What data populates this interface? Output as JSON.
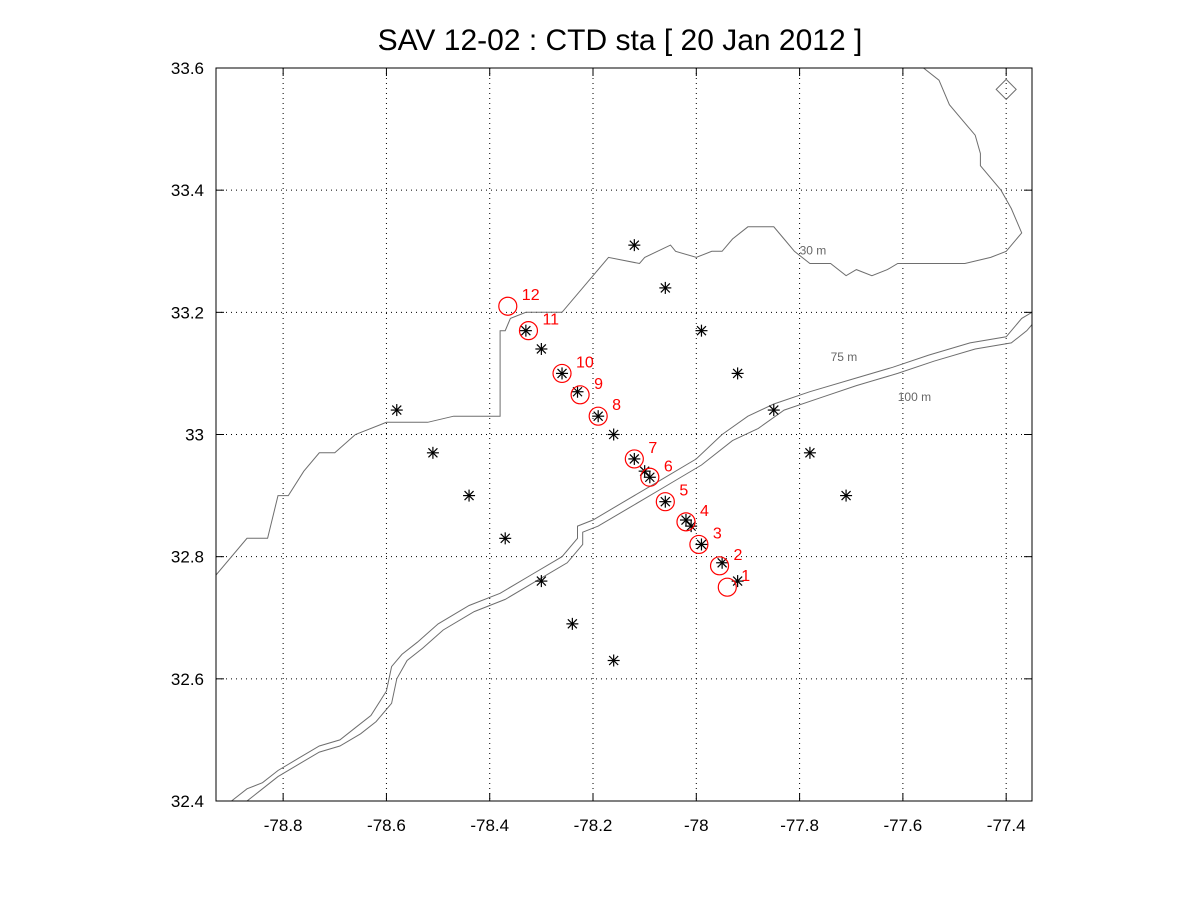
{
  "title": "SAV 12-02 : CTD  sta   [ 20 Jan 2012 ]",
  "map": {
    "xlim": [
      -78.93,
      -77.35
    ],
    "ylim": [
      32.4,
      33.6
    ],
    "x_ticks": [
      -78.8,
      -78.6,
      -78.4,
      -78.2,
      -78.0,
      -77.8,
      -77.6,
      -77.4
    ],
    "x_tick_labels": [
      "-78.8",
      "-78.6",
      "-78.4",
      "-78.2",
      "-78",
      "-77.8",
      "-77.6",
      "-77.4"
    ],
    "y_ticks": [
      32.4,
      32.6,
      32.8,
      33.0,
      33.2,
      33.4,
      33.6
    ],
    "y_tick_labels": [
      "32.4",
      "32.6",
      "32.8",
      "33",
      "33.2",
      "33.4",
      "33.6"
    ],
    "grid": true,
    "contour_labels": [
      {
        "text": "30 m",
        "lon": -77.8,
        "lat": 33.295
      },
      {
        "text": "75 m",
        "lon": -77.74,
        "lat": 33.12
      },
      {
        "text": "100 m",
        "lon": -77.61,
        "lat": 33.055
      }
    ],
    "coastline": [
      [
        -78.93,
        32.77
      ],
      [
        -78.87,
        32.83
      ],
      [
        -78.83,
        32.83
      ],
      [
        -78.81,
        32.9
      ],
      [
        -78.79,
        32.9
      ],
      [
        -78.76,
        32.94
      ],
      [
        -78.73,
        32.97
      ],
      [
        -78.7,
        32.97
      ],
      [
        -78.66,
        33.0
      ],
      [
        -78.6,
        33.02
      ],
      [
        -78.52,
        33.02
      ],
      [
        -78.47,
        33.03
      ],
      [
        -78.43,
        33.03
      ],
      [
        -78.38,
        33.03
      ],
      [
        -78.38,
        33.17
      ],
      [
        -78.37,
        33.17
      ],
      [
        -78.36,
        33.19
      ],
      [
        -78.33,
        33.2
      ],
      [
        -78.32,
        33.2
      ],
      [
        -78.3,
        33.2
      ],
      [
        -78.26,
        33.2
      ],
      [
        -78.17,
        33.29
      ],
      [
        -78.11,
        33.28
      ],
      [
        -78.1,
        33.29
      ],
      [
        -78.05,
        33.31
      ],
      [
        -78.04,
        33.3
      ],
      [
        -78.0,
        33.29
      ],
      [
        -77.97,
        33.3
      ],
      [
        -77.95,
        33.3
      ],
      [
        -77.93,
        33.32
      ],
      [
        -77.9,
        33.34
      ],
      [
        -77.85,
        33.34
      ],
      [
        -77.83,
        33.32
      ],
      [
        -77.81,
        33.3
      ],
      [
        -77.78,
        33.28
      ],
      [
        -77.74,
        33.28
      ],
      [
        -77.71,
        33.26
      ],
      [
        -77.69,
        33.27
      ],
      [
        -77.66,
        33.26
      ],
      [
        -77.63,
        33.27
      ],
      [
        -77.61,
        33.28
      ],
      [
        -77.57,
        33.28
      ],
      [
        -77.54,
        33.28
      ],
      [
        -77.51,
        33.28
      ],
      [
        -77.48,
        33.28
      ],
      [
        -77.43,
        33.29
      ],
      [
        -77.4,
        33.3
      ],
      [
        -77.37,
        33.33
      ],
      [
        -77.39,
        33.37
      ],
      [
        -77.41,
        33.4
      ],
      [
        -77.45,
        33.44
      ],
      [
        -77.45,
        33.46
      ],
      [
        -77.46,
        33.49
      ],
      [
        -77.47,
        33.5
      ],
      [
        -77.49,
        33.52
      ],
      [
        -77.51,
        33.54
      ],
      [
        -77.53,
        33.58
      ],
      [
        -77.56,
        33.6
      ]
    ],
    "isobath_75m": [
      [
        -78.9,
        32.4
      ],
      [
        -78.87,
        32.42
      ],
      [
        -78.84,
        32.43
      ],
      [
        -78.81,
        32.45
      ],
      [
        -78.77,
        32.47
      ],
      [
        -78.73,
        32.49
      ],
      [
        -78.69,
        32.5
      ],
      [
        -78.66,
        32.52
      ],
      [
        -78.63,
        32.54
      ],
      [
        -78.6,
        32.58
      ],
      [
        -78.59,
        32.62
      ],
      [
        -78.57,
        32.64
      ],
      [
        -78.54,
        32.66
      ],
      [
        -78.5,
        32.69
      ],
      [
        -78.44,
        32.72
      ],
      [
        -78.38,
        32.74
      ],
      [
        -78.32,
        32.77
      ],
      [
        -78.26,
        32.8
      ],
      [
        -78.23,
        32.83
      ],
      [
        -78.23,
        32.85
      ],
      [
        -78.2,
        32.86
      ],
      [
        -78.14,
        32.89
      ],
      [
        -78.08,
        32.92
      ],
      [
        -78.0,
        32.96
      ],
      [
        -77.95,
        33.0
      ],
      [
        -77.9,
        33.03
      ],
      [
        -77.85,
        33.05
      ],
      [
        -77.78,
        33.07
      ],
      [
        -77.7,
        33.09
      ],
      [
        -77.62,
        33.11
      ],
      [
        -77.55,
        33.13
      ],
      [
        -77.47,
        33.15
      ],
      [
        -77.4,
        33.16
      ],
      [
        -77.37,
        33.19
      ],
      [
        -77.35,
        33.2
      ]
    ],
    "isobath_100m": [
      [
        -78.87,
        32.4
      ],
      [
        -78.84,
        32.42
      ],
      [
        -78.81,
        32.44
      ],
      [
        -78.77,
        32.46
      ],
      [
        -78.73,
        32.48
      ],
      [
        -78.69,
        32.49
      ],
      [
        -78.65,
        32.51
      ],
      [
        -78.62,
        32.53
      ],
      [
        -78.59,
        32.56
      ],
      [
        -78.58,
        32.6
      ],
      [
        -78.56,
        32.63
      ],
      [
        -78.53,
        32.65
      ],
      [
        -78.49,
        32.68
      ],
      [
        -78.43,
        32.71
      ],
      [
        -78.37,
        32.73
      ],
      [
        -78.31,
        32.76
      ],
      [
        -78.25,
        32.79
      ],
      [
        -78.22,
        32.82
      ],
      [
        -78.22,
        32.84
      ],
      [
        -78.19,
        32.85
      ],
      [
        -78.13,
        32.88
      ],
      [
        -78.07,
        32.91
      ],
      [
        -77.99,
        32.95
      ],
      [
        -77.93,
        32.99
      ],
      [
        -77.88,
        33.01
      ],
      [
        -77.83,
        33.04
      ],
      [
        -77.76,
        33.06
      ],
      [
        -77.69,
        33.08
      ],
      [
        -77.61,
        33.1
      ],
      [
        -77.54,
        33.12
      ],
      [
        -77.46,
        33.14
      ],
      [
        -77.39,
        33.15
      ],
      [
        -77.36,
        33.17
      ],
      [
        -77.35,
        33.18
      ]
    ],
    "ctd_stations": [
      [
        -78.12,
        33.31
      ],
      [
        -78.06,
        33.24
      ],
      [
        -77.99,
        33.17
      ],
      [
        -77.92,
        33.1
      ],
      [
        -77.85,
        33.04
      ],
      [
        -77.78,
        32.97
      ],
      [
        -77.71,
        32.9
      ],
      [
        -78.58,
        33.04
      ],
      [
        -78.51,
        32.97
      ],
      [
        -78.44,
        32.9
      ],
      [
        -78.37,
        32.83
      ],
      [
        -78.3,
        32.76
      ],
      [
        -78.24,
        32.69
      ],
      [
        -78.16,
        32.63
      ],
      [
        -78.33,
        33.17
      ],
      [
        -78.3,
        33.14
      ],
      [
        -78.26,
        33.1
      ],
      [
        -78.23,
        33.07
      ],
      [
        -78.19,
        33.03
      ],
      [
        -78.16,
        33.0
      ],
      [
        -78.12,
        32.96
      ],
      [
        -78.1,
        32.94
      ],
      [
        -78.09,
        32.93
      ],
      [
        -78.06,
        32.89
      ],
      [
        -78.02,
        32.86
      ],
      [
        -78.01,
        32.85
      ],
      [
        -77.99,
        32.82
      ],
      [
        -77.95,
        32.79
      ],
      [
        -77.92,
        32.76
      ]
    ],
    "occupied_stations": [
      {
        "label": "1",
        "lon": -77.94,
        "lat": 32.75
      },
      {
        "label": "2",
        "lon": -77.955,
        "lat": 32.785
      },
      {
        "label": "3",
        "lon": -77.995,
        "lat": 32.82
      },
      {
        "label": "4",
        "lon": -78.02,
        "lat": 32.857
      },
      {
        "label": "5",
        "lon": -78.06,
        "lat": 32.89
      },
      {
        "label": "6",
        "lon": -78.09,
        "lat": 32.93
      },
      {
        "label": "7",
        "lon": -78.12,
        "lat": 32.96
      },
      {
        "label": "8",
        "lon": -78.19,
        "lat": 33.03
      },
      {
        "label": "9",
        "lon": -78.225,
        "lat": 33.065
      },
      {
        "label": "10",
        "lon": -78.26,
        "lat": 33.1
      },
      {
        "label": "11",
        "lon": -78.325,
        "lat": 33.17
      },
      {
        "label": "12",
        "lon": -78.365,
        "lat": 33.21
      }
    ],
    "diamond_marker": {
      "lon": -77.4,
      "lat": 33.565
    },
    "colors": {
      "stations": "#ff0000",
      "contours": "#6e6e6e",
      "markers": "#000000"
    }
  }
}
